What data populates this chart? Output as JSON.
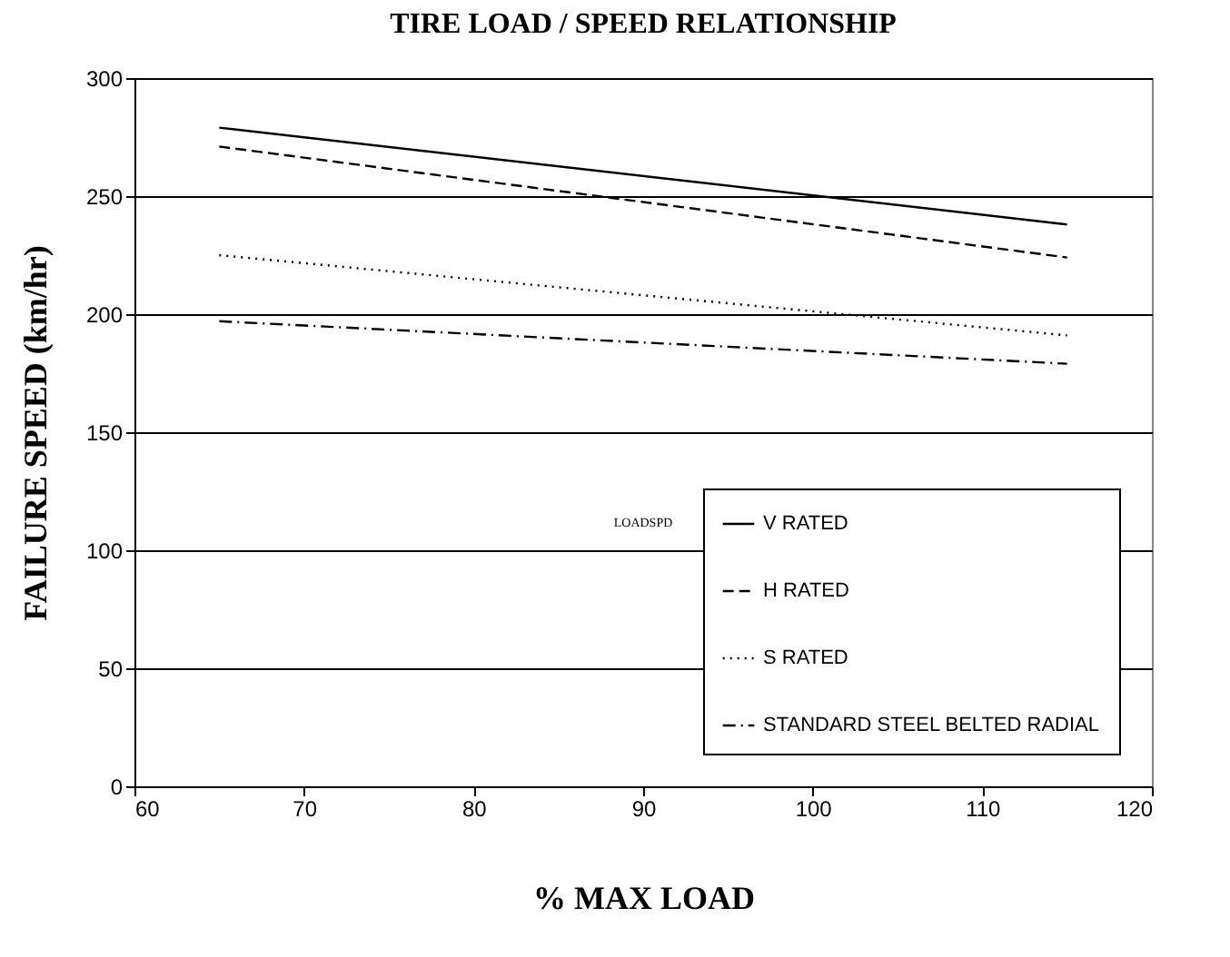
{
  "chart_data": {
    "type": "line",
    "title": "TIRE LOAD / SPEED RELATIONSHIP",
    "xlabel": "% MAX LOAD",
    "ylabel": "FAILURE SPEED (km/hr)",
    "x": [
      65,
      115
    ],
    "series": [
      {
        "name": "V RATED",
        "color": "#000000",
        "line_style": "solid",
        "values": [
          279,
          238
        ]
      },
      {
        "name": "H RATED",
        "color": "#000000",
        "line_style": "dashed",
        "values": [
          271,
          224
        ]
      },
      {
        "name": "S RATED",
        "color": "#000000",
        "line_style": "dotted",
        "values": [
          225,
          191
        ]
      },
      {
        "name": "STANDARD STEEL BELTED RADIAL",
        "color": "#000000",
        "line_style": "dashdot",
        "values": [
          197,
          179
        ]
      }
    ],
    "xlim": [
      60,
      120
    ],
    "xticks": [
      60,
      70,
      80,
      90,
      100,
      110,
      120
    ],
    "ylim": [
      0,
      300
    ],
    "yticks": [
      0,
      50,
      100,
      150,
      200,
      250,
      300
    ],
    "grid": "y",
    "legend": "bottom right",
    "marker": "none",
    "annotations": [
      "LOADSPD"
    ]
  }
}
